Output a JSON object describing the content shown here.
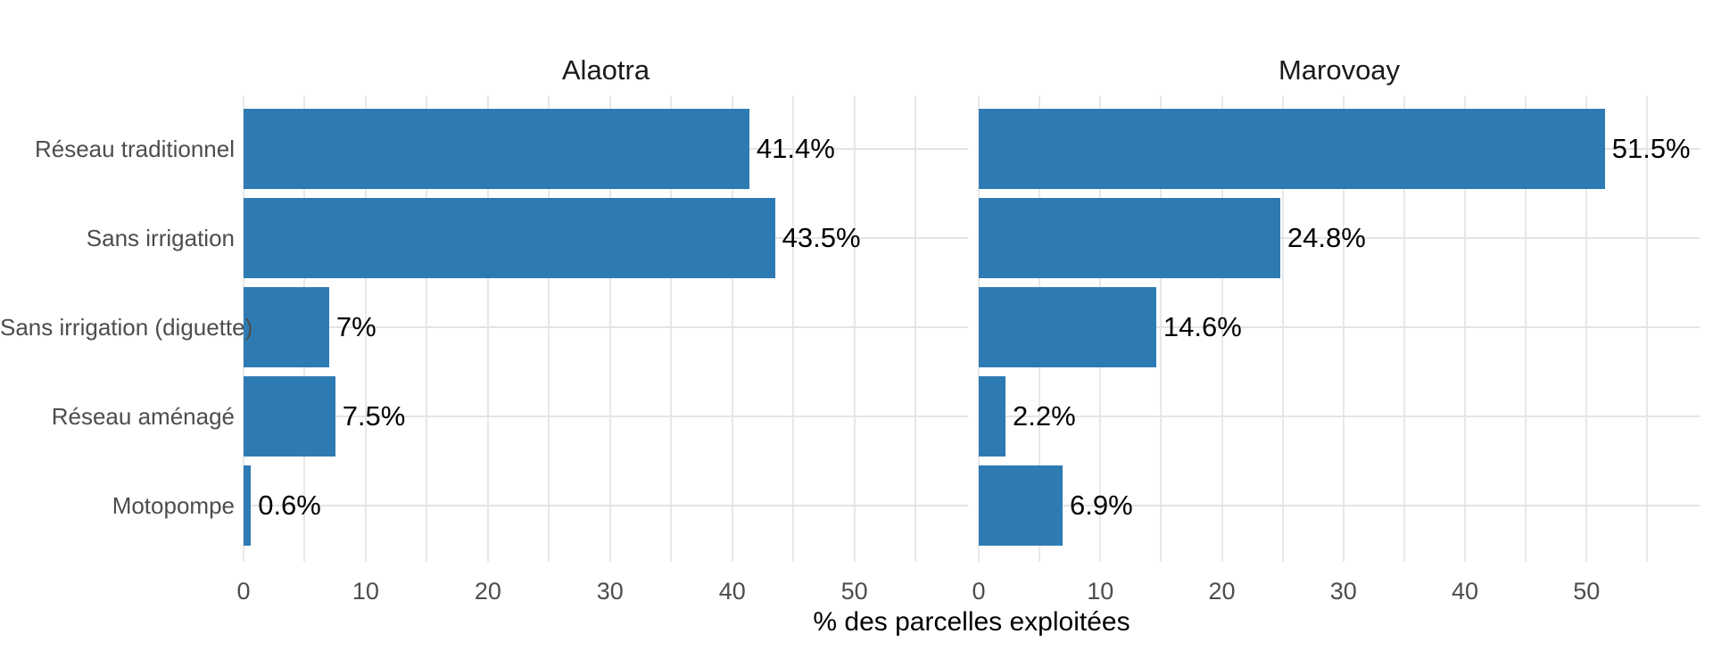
{
  "chart_data": {
    "type": "bar",
    "orientation": "horizontal",
    "title": "",
    "xlabel": "% des parcelles exploitées",
    "ylabel": "",
    "categories": [
      "Réseau traditionnel",
      "Sans irrigation",
      "Sans irrigation (diguette)",
      "Réseau aménagé",
      "Motopompe"
    ],
    "series": [
      {
        "name": "Alaotra",
        "values": [
          41.4,
          43.5,
          7,
          7.5,
          0.6
        ],
        "labels": [
          "41.4%",
          "43.5%",
          "7%",
          "7.5%",
          "0.6%"
        ]
      },
      {
        "name": "Marovoay",
        "values": [
          51.5,
          24.8,
          14.6,
          2.2,
          6.9
        ],
        "labels": [
          "51.5%",
          "24.8%",
          "14.6%",
          "2.2%",
          "6.9%"
        ]
      }
    ],
    "x_ticks": [
      0,
      10,
      20,
      30,
      40,
      50
    ],
    "x_tick_labels": [
      "0",
      "10",
      "20",
      "30",
      "40",
      "50"
    ],
    "xlim": [
      0,
      59.3
    ],
    "grid_step": 5,
    "grid": "on",
    "legend": "none",
    "bar_color": "#2e7bb4",
    "grid_color": "#e8e8e8",
    "axis_text_color": "#4d4d4d",
    "label_text_color": "#000000"
  }
}
